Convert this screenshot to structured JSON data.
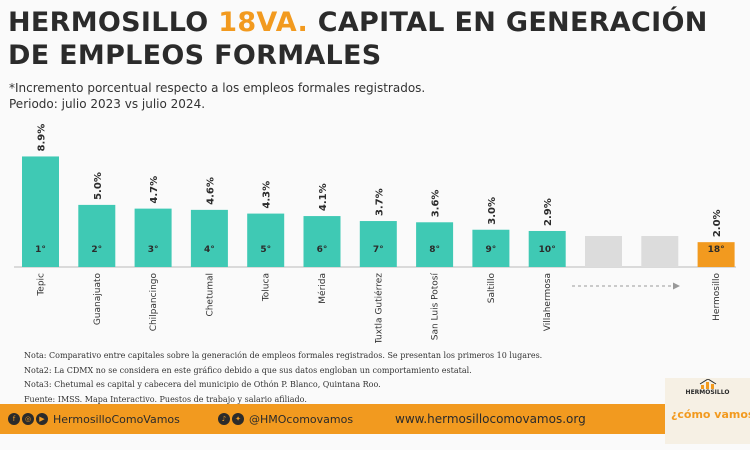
{
  "header": {
    "title_line1_pre": "HERMOSILLO ",
    "title_line1_highlight": "18VA.",
    "title_line1_post": " CAPITAL EN GENERACIÓN",
    "title_line2": "DE EMPLEOS FORMALES",
    "subtitle_line1": "*Incremento porcentual respecto a los empleos formales registrados.",
    "subtitle_line2": "Periodo: julio 2023 vs julio 2024."
  },
  "chart_data": {
    "type": "bar",
    "title": "",
    "xlabel": "",
    "ylabel": "",
    "ylim": [
      0,
      9.5
    ],
    "grid": false,
    "categories": [
      "Tepic",
      "Guanajuato",
      "Chilpancingo",
      "Chetumal",
      "Toluca",
      "Mérida",
      "Tuxtla Gutiérrez",
      "San Luis Potosí",
      "Saltillo",
      "Villahermosa",
      "",
      "",
      "Hermosillo"
    ],
    "values": [
      8.9,
      5.0,
      4.7,
      4.6,
      4.3,
      4.1,
      3.7,
      3.6,
      3.0,
      2.9,
      null,
      null,
      2.0
    ],
    "value_labels": [
      "8.9%",
      "5.0%",
      "4.7%",
      "4.6%",
      "4.3%",
      "4.1%",
      "3.7%",
      "3.6%",
      "3.0%",
      "2.9%",
      "",
      "",
      "2.0%"
    ],
    "rank_labels": [
      "1°",
      "2°",
      "3°",
      "4°",
      "5°",
      "6°",
      "7°",
      "8°",
      "9°",
      "10°",
      "",
      "",
      "18°"
    ],
    "placeholder_bars": [
      10,
      11
    ],
    "colors": {
      "bar": "#3fc9b4",
      "highlight": "#f29a1f",
      "placeholder": "#dcdcdc",
      "rank_text": "#2b2b2b"
    }
  },
  "notes": [
    "Nota: Comparativo entre capitales sobre la generación de empleos formales registrados. Se presentan los primeros 10 lugares.",
    "Nota2: La CDMX no se considera en este gráfico debido a que sus datos engloban un comportamiento estatal.",
    "Nota3: Chetumal es capital y cabecera del municipio de Othón P. Blanco, Quintana Roo.",
    "Fuente: IMSS. Mapa Interactivo. Puestos de trabajo y salario afiliado."
  ],
  "footer": {
    "social_handle_1": "HermosilloComoVamos",
    "social_handle_2": "@HMOcomovamos",
    "website": "www.hermosillocomovamos.org",
    "icons_group_1": [
      "facebook-icon",
      "instagram-icon",
      "youtube-icon"
    ],
    "icons_group_2": [
      "tiktok-icon",
      "twitter-icon"
    ]
  },
  "logo": {
    "name": "HERMOSILLO",
    "slogan": "¿cómo vamos"
  },
  "colors": {
    "accent": "#f29a1f",
    "teal": "#3fc9b4",
    "text": "#2b2b2b"
  }
}
